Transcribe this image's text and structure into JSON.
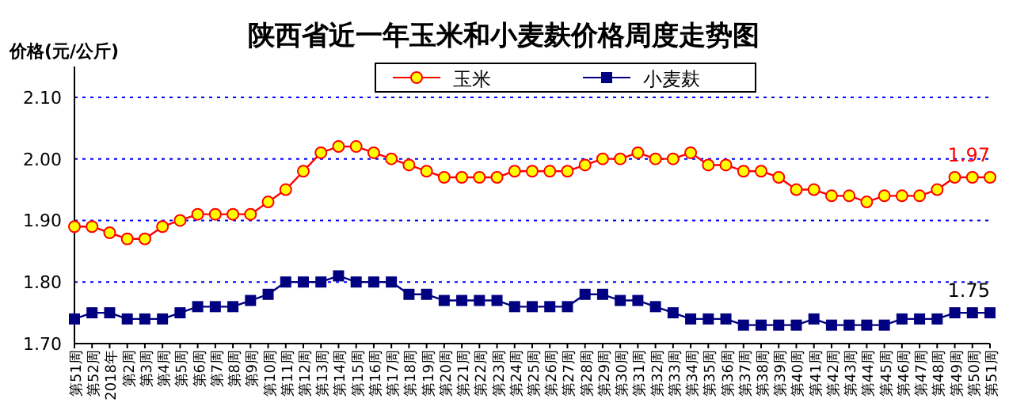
{
  "chart_data": {
    "type": "line",
    "title": "陕西省近一年玉米和小麦麸价格周度走势图",
    "ylabel": "价格(元/公斤)",
    "categories": [
      "第51周",
      "第52周",
      "2018年",
      "第2周",
      "第3周",
      "第4周",
      "第5周",
      "第6周",
      "第7周",
      "第8周",
      "第9周",
      "第10周",
      "第11周",
      "第12周",
      "第13周",
      "第14周",
      "第15周",
      "第16周",
      "第17周",
      "第18周",
      "第19周",
      "第20周",
      "第21周",
      "第22周",
      "第23周",
      "第24周",
      "第25周",
      "第26周",
      "第27周",
      "第28周",
      "第29周",
      "第30周",
      "第31周",
      "第32周",
      "第33周",
      "第34周",
      "第35周",
      "第36周",
      "第37周",
      "第38周",
      "第39周",
      "第40周",
      "第41周",
      "第42周",
      "第43周",
      "第44周",
      "第45周",
      "第46周",
      "第47周",
      "第48周",
      "第49周",
      "第50周",
      "第51周"
    ],
    "series": [
      {
        "name": "玉米",
        "color": "#ff0000",
        "marker": "circle",
        "values": [
          1.89,
          1.89,
          1.88,
          1.87,
          1.87,
          1.89,
          1.9,
          1.91,
          1.91,
          1.91,
          1.91,
          1.93,
          1.95,
          1.98,
          2.01,
          2.02,
          2.02,
          2.01,
          2.0,
          1.99,
          1.98,
          1.97,
          1.97,
          1.97,
          1.97,
          1.98,
          1.98,
          1.98,
          1.98,
          1.99,
          2.0,
          2.0,
          2.01,
          2.0,
          2.0,
          2.01,
          1.99,
          1.99,
          1.98,
          1.98,
          1.97,
          1.95,
          1.95,
          1.94,
          1.94,
          1.93,
          1.94,
          1.94,
          1.94,
          1.95,
          1.97,
          1.97,
          1.97
        ],
        "value_labels": [
          null,
          null,
          null,
          null,
          null,
          null,
          null,
          null,
          null,
          null,
          null,
          null,
          null,
          null,
          null,
          null,
          null,
          null,
          null,
          null,
          null,
          null,
          null,
          null,
          null,
          null,
          null,
          null,
          null,
          null,
          null,
          null,
          null,
          null,
          null,
          null,
          null,
          null,
          null,
          null,
          null,
          null,
          null,
          null,
          null,
          null,
          null,
          null,
          null,
          null,
          null,
          null,
          "1.97"
        ]
      },
      {
        "name": "小麦麸",
        "color": "#000080",
        "marker": "square",
        "values": [
          1.74,
          1.75,
          1.75,
          1.74,
          1.74,
          1.74,
          1.75,
          1.76,
          1.76,
          1.76,
          1.77,
          1.78,
          1.8,
          1.8,
          1.8,
          1.81,
          1.8,
          1.8,
          1.8,
          1.78,
          1.78,
          1.77,
          1.77,
          1.77,
          1.77,
          1.76,
          1.76,
          1.76,
          1.76,
          1.78,
          1.78,
          1.77,
          1.77,
          1.76,
          1.75,
          1.74,
          1.74,
          1.74,
          1.73,
          1.73,
          1.73,
          1.73,
          1.74,
          1.73,
          1.73,
          1.73,
          1.73,
          1.74,
          1.74,
          1.74,
          1.75,
          1.75,
          1.75
        ],
        "value_labels": [
          null,
          null,
          null,
          null,
          null,
          null,
          null,
          null,
          null,
          null,
          null,
          null,
          null,
          null,
          null,
          null,
          null,
          null,
          null,
          null,
          null,
          null,
          null,
          null,
          null,
          null,
          null,
          null,
          null,
          null,
          null,
          null,
          null,
          null,
          null,
          null,
          null,
          null,
          null,
          null,
          null,
          null,
          null,
          null,
          null,
          null,
          null,
          null,
          null,
          null,
          null,
          null,
          "1.75"
        ]
      }
    ],
    "ylim": [
      1.7,
      2.15
    ],
    "yticks": [
      {
        "value": 1.7,
        "label": "1.70"
      },
      {
        "value": 1.8,
        "label": "1.80"
      },
      {
        "value": 1.9,
        "label": "1.90"
      },
      {
        "value": 2.0,
        "label": "2.00"
      },
      {
        "value": 2.1,
        "label": "2.10"
      }
    ],
    "grid": "y",
    "legend": "top"
  }
}
